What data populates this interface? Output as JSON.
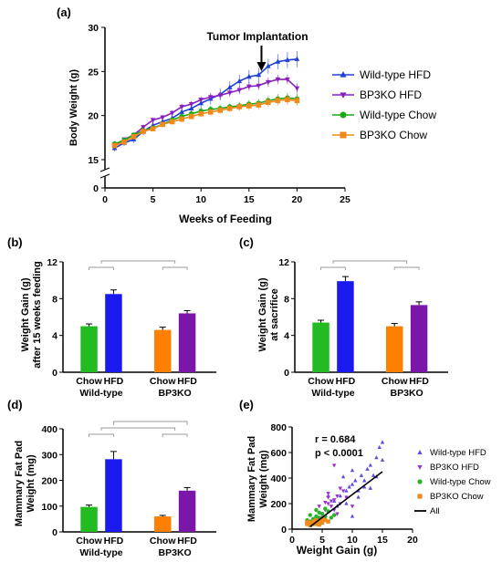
{
  "panels": {
    "a": {
      "label": "(a)",
      "chart_data": {
        "type": "line",
        "xlabel": "Weeks of Feeding",
        "ylabel": "Body Weight (g)",
        "xlim": [
          0,
          25
        ],
        "ylim": [
          15,
          30
        ],
        "axis_break": true,
        "y_zero_tick": "0",
        "xticks": [
          "0",
          "5",
          "10",
          "15",
          "20",
          "25"
        ],
        "yticks": [
          "15",
          "20",
          "25",
          "30"
        ],
        "annotation": "Tumor Implantation",
        "annotation_x": 16.3,
        "legend_position": "right",
        "x": [
          1,
          2,
          3,
          4,
          5,
          6,
          7,
          8,
          9,
          10,
          11,
          12,
          13,
          14,
          15,
          16,
          17,
          18,
          19,
          20
        ],
        "series": [
          {
            "name": "Wild-type HFD",
            "color": "#1f3fd6",
            "marker": "triangle-up",
            "values": [
              16.3,
              16.9,
              17.3,
              18.2,
              18.9,
              19.3,
              19.7,
              20.4,
              20.8,
              21.4,
              21.9,
              22.4,
              23.2,
              23.9,
              24.4,
              24.6,
              25.6,
              26.1,
              26.3,
              26.4
            ]
          },
          {
            "name": "BP3KO HFD",
            "color": "#8a1fbf",
            "marker": "triangle-down",
            "values": [
              16.6,
              17.3,
              17.8,
              18.7,
              19.5,
              19.8,
              20.3,
              21.0,
              21.3,
              21.8,
              22.1,
              22.3,
              22.6,
              22.9,
              23.3,
              23.4,
              23.8,
              24.1,
              24.1,
              23.1
            ]
          },
          {
            "name": "Wild-type Chow",
            "color": "#1aa91a",
            "marker": "circle",
            "values": [
              16.8,
              17.2,
              17.8,
              18.3,
              18.6,
              19.0,
              19.5,
              19.9,
              20.2,
              20.5,
              20.7,
              20.8,
              21.0,
              21.1,
              21.3,
              21.4,
              21.7,
              21.9,
              22.0,
              21.9
            ]
          },
          {
            "name": "BP3KO Chow",
            "color": "#f08a1a",
            "marker": "square",
            "values": [
              16.6,
              17.0,
              17.6,
              18.2,
              18.5,
              19.0,
              19.3,
              19.6,
              19.9,
              20.2,
              20.4,
              20.6,
              20.8,
              21.0,
              21.1,
              21.2,
              21.5,
              21.7,
              21.8,
              21.7
            ]
          }
        ]
      }
    },
    "b": {
      "label": "(b)",
      "chart_data": {
        "type": "bar",
        "ylabel_lines": [
          "Weight Gain (g)",
          "after 15 weeks feeding"
        ],
        "ylim": [
          0,
          12
        ],
        "yticks": [
          "0",
          "4",
          "8",
          "12"
        ],
        "categories": [
          "Chow",
          "HFD",
          "Chow",
          "HFD"
        ],
        "groups": [
          "Wild-type",
          "BP3KO"
        ],
        "values": [
          5.0,
          8.5,
          4.6,
          6.4
        ],
        "errors": [
          0.25,
          0.45,
          0.3,
          0.3
        ],
        "colors": [
          "#22bb22",
          "#1a1aee",
          "#ff7f00",
          "#7a16a8"
        ]
      }
    },
    "c": {
      "label": "(c)",
      "chart_data": {
        "type": "bar",
        "ylabel_lines": [
          "Weight Gain (g)",
          "at sacrifice"
        ],
        "ylim": [
          0,
          12
        ],
        "yticks": [
          "0",
          "4",
          "8",
          "12"
        ],
        "categories": [
          "Chow",
          "HFD",
          "Chow",
          "HFD"
        ],
        "groups": [
          "Wild-type",
          "BP3KO"
        ],
        "values": [
          5.4,
          9.9,
          5.0,
          7.3
        ],
        "errors": [
          0.25,
          0.5,
          0.3,
          0.35
        ],
        "colors": [
          "#22bb22",
          "#1a1aee",
          "#ff7f00",
          "#7a16a8"
        ]
      }
    },
    "d": {
      "label": "(d)",
      "chart_data": {
        "type": "bar",
        "ylabel_lines": [
          "Mammary Fat Pad",
          "Weight (mg)"
        ],
        "ylim": [
          0,
          400
        ],
        "yticks": [
          "0",
          "100",
          "200",
          "300",
          "400"
        ],
        "categories": [
          "Chow",
          "HFD",
          "Chow",
          "HFD"
        ],
        "groups": [
          "Wild-type",
          "BP3KO"
        ],
        "values": [
          97,
          282,
          60,
          160
        ],
        "errors": [
          7,
          30,
          4,
          12
        ],
        "colors": [
          "#22bb22",
          "#1a1aee",
          "#ff7f00",
          "#7a16a8"
        ]
      }
    },
    "e": {
      "label": "(e)",
      "chart_data": {
        "type": "scatter",
        "xlabel": "Weight Gain (g)",
        "ylabel_lines": [
          "Mammary Fat Pad",
          "Weight (mg)"
        ],
        "xlim": [
          0,
          20
        ],
        "ylim": [
          0,
          800
        ],
        "xticks": [
          "0",
          "5",
          "10",
          "15",
          "20"
        ],
        "yticks": [
          "0",
          "200",
          "400",
          "600",
          "800"
        ],
        "annotation_lines": [
          "r = 0.684",
          "p < 0.0001"
        ],
        "fit_line": {
          "name": "All",
          "color": "#000000",
          "x": [
            3,
            15
          ],
          "y": [
            20,
            450
          ]
        },
        "series": [
          {
            "name": "Wild-type HFD",
            "color": "#5a4fe0",
            "marker": "triangle-up",
            "points": [
              [
                7,
                220
              ],
              [
                8,
                260
              ],
              [
                9,
                300
              ],
              [
                9.5,
                330
              ],
              [
                10,
                350
              ],
              [
                10.5,
                380
              ],
              [
                11,
                300
              ],
              [
                11.5,
                420
              ],
              [
                12,
                380
              ],
              [
                12.5,
                470
              ],
              [
                13,
                500
              ],
              [
                13.5,
                420
              ],
              [
                14,
                560
              ],
              [
                14.5,
                640
              ],
              [
                15,
                680
              ],
              [
                15,
                540
              ],
              [
                8.5,
                410
              ],
              [
                10,
                460
              ],
              [
                11,
                250
              ],
              [
                12,
                330
              ],
              [
                7.5,
                180
              ],
              [
                6,
                260
              ],
              [
                13,
                320
              ],
              [
                9,
                200
              ],
              [
                10,
                100
              ],
              [
                14,
                410
              ]
            ]
          },
          {
            "name": "BP3KO HFD",
            "color": "#9b2fd0",
            "marker": "triangle-down",
            "points": [
              [
                5,
                120
              ],
              [
                5.5,
                150
              ],
              [
                6,
                200
              ],
              [
                6.5,
                180
              ],
              [
                7,
                230
              ],
              [
                7.5,
                260
              ],
              [
                8,
                200
              ],
              [
                8.5,
                300
              ],
              [
                5,
                90
              ],
              [
                6,
                250
              ],
              [
                7,
                150
              ],
              [
                6.5,
                220
              ],
              [
                9,
                250
              ],
              [
                4.5,
                180
              ],
              [
                8,
                320
              ],
              [
                7,
                500
              ],
              [
                6,
                280
              ],
              [
                5.5,
                210
              ],
              [
                10,
                180
              ],
              [
                7.5,
                120
              ]
            ]
          },
          {
            "name": "Wild-type Chow",
            "color": "#2bb02b",
            "marker": "circle",
            "points": [
              [
                3,
                60
              ],
              [
                3.5,
                80
              ],
              [
                4,
                100
              ],
              [
                4.5,
                90
              ],
              [
                5,
                120
              ],
              [
                5.5,
                100
              ],
              [
                6,
                140
              ],
              [
                4,
                50
              ],
              [
                3,
                110
              ],
              [
                5,
                70
              ],
              [
                6.5,
                90
              ],
              [
                4.5,
                130
              ],
              [
                3.5,
                40
              ],
              [
                5.5,
                160
              ],
              [
                6,
                60
              ],
              [
                7,
                110
              ],
              [
                2.5,
                70
              ],
              [
                4,
                150
              ]
            ]
          },
          {
            "name": "BP3KO Chow",
            "color": "#f0891b",
            "marker": "square",
            "points": [
              [
                2.5,
                40
              ],
              [
                3,
                50
              ],
              [
                3.5,
                60
              ],
              [
                4,
                40
              ],
              [
                4.5,
                60
              ],
              [
                5,
                50
              ],
              [
                5.5,
                70
              ],
              [
                3,
                30
              ],
              [
                4,
                70
              ],
              [
                6,
                60
              ],
              [
                3.5,
                45
              ],
              [
                4.5,
                35
              ],
              [
                5,
                80
              ],
              [
                2.5,
                55
              ]
            ]
          }
        ]
      }
    }
  }
}
